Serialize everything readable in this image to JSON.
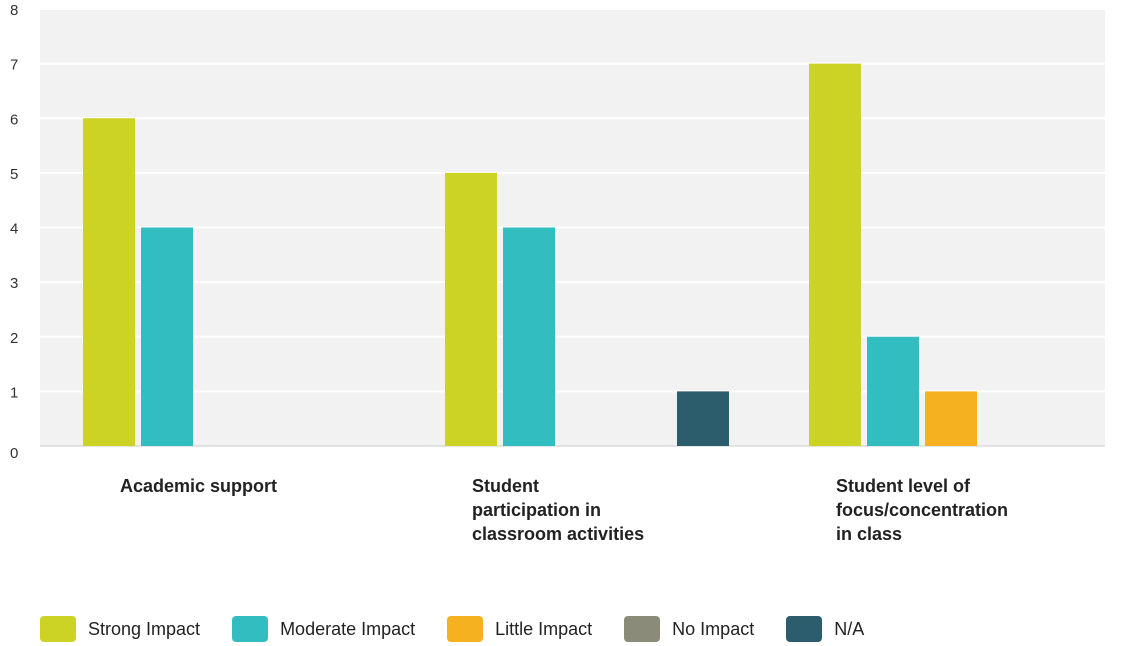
{
  "chart_data": {
    "type": "bar",
    "categories": [
      "Academic support",
      "Student\nparticipation in\nclassroom activities",
      "Student level of\nfocus/concentration\nin class"
    ],
    "series": [
      {
        "name": "Strong Impact",
        "color": "#cdd324",
        "values": [
          6,
          5,
          7
        ]
      },
      {
        "name": "Moderate Impact",
        "color": "#32bec1",
        "values": [
          4,
          4,
          2
        ]
      },
      {
        "name": "Little Impact",
        "color": "#f5b120",
        "values": [
          0,
          0,
          1
        ]
      },
      {
        "name": "No Impact",
        "color": "#8a8b79",
        "values": [
          0,
          0,
          0
        ]
      },
      {
        "name": "N/A",
        "color": "#2b5d6d",
        "values": [
          0,
          1,
          0
        ]
      }
    ],
    "ylim": [
      0,
      8
    ],
    "yticks": [
      0,
      1,
      2,
      3,
      4,
      5,
      6,
      7,
      8
    ],
    "grid": true,
    "legend_position": "bottom"
  }
}
